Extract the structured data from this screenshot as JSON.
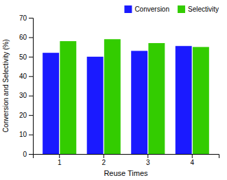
{
  "chart_data": {
    "type": "bar",
    "xlabel": "Reuse Times",
    "ylabel": "Conversion and Selectivity (%)",
    "categories": [
      "1",
      "2",
      "3",
      "4"
    ],
    "series": [
      {
        "name": "Conversion",
        "color": "#1a1aff",
        "values": [
          52,
          50,
          53,
          55.5
        ]
      },
      {
        "name": "Selectivity",
        "color": "#33cc00",
        "values": [
          58,
          59,
          57,
          55
        ]
      }
    ],
    "ylim": [
      0,
      70
    ],
    "yticks": [
      0,
      10,
      20,
      30,
      40,
      50,
      60,
      70
    ],
    "grid": false,
    "legend": "upper right"
  }
}
